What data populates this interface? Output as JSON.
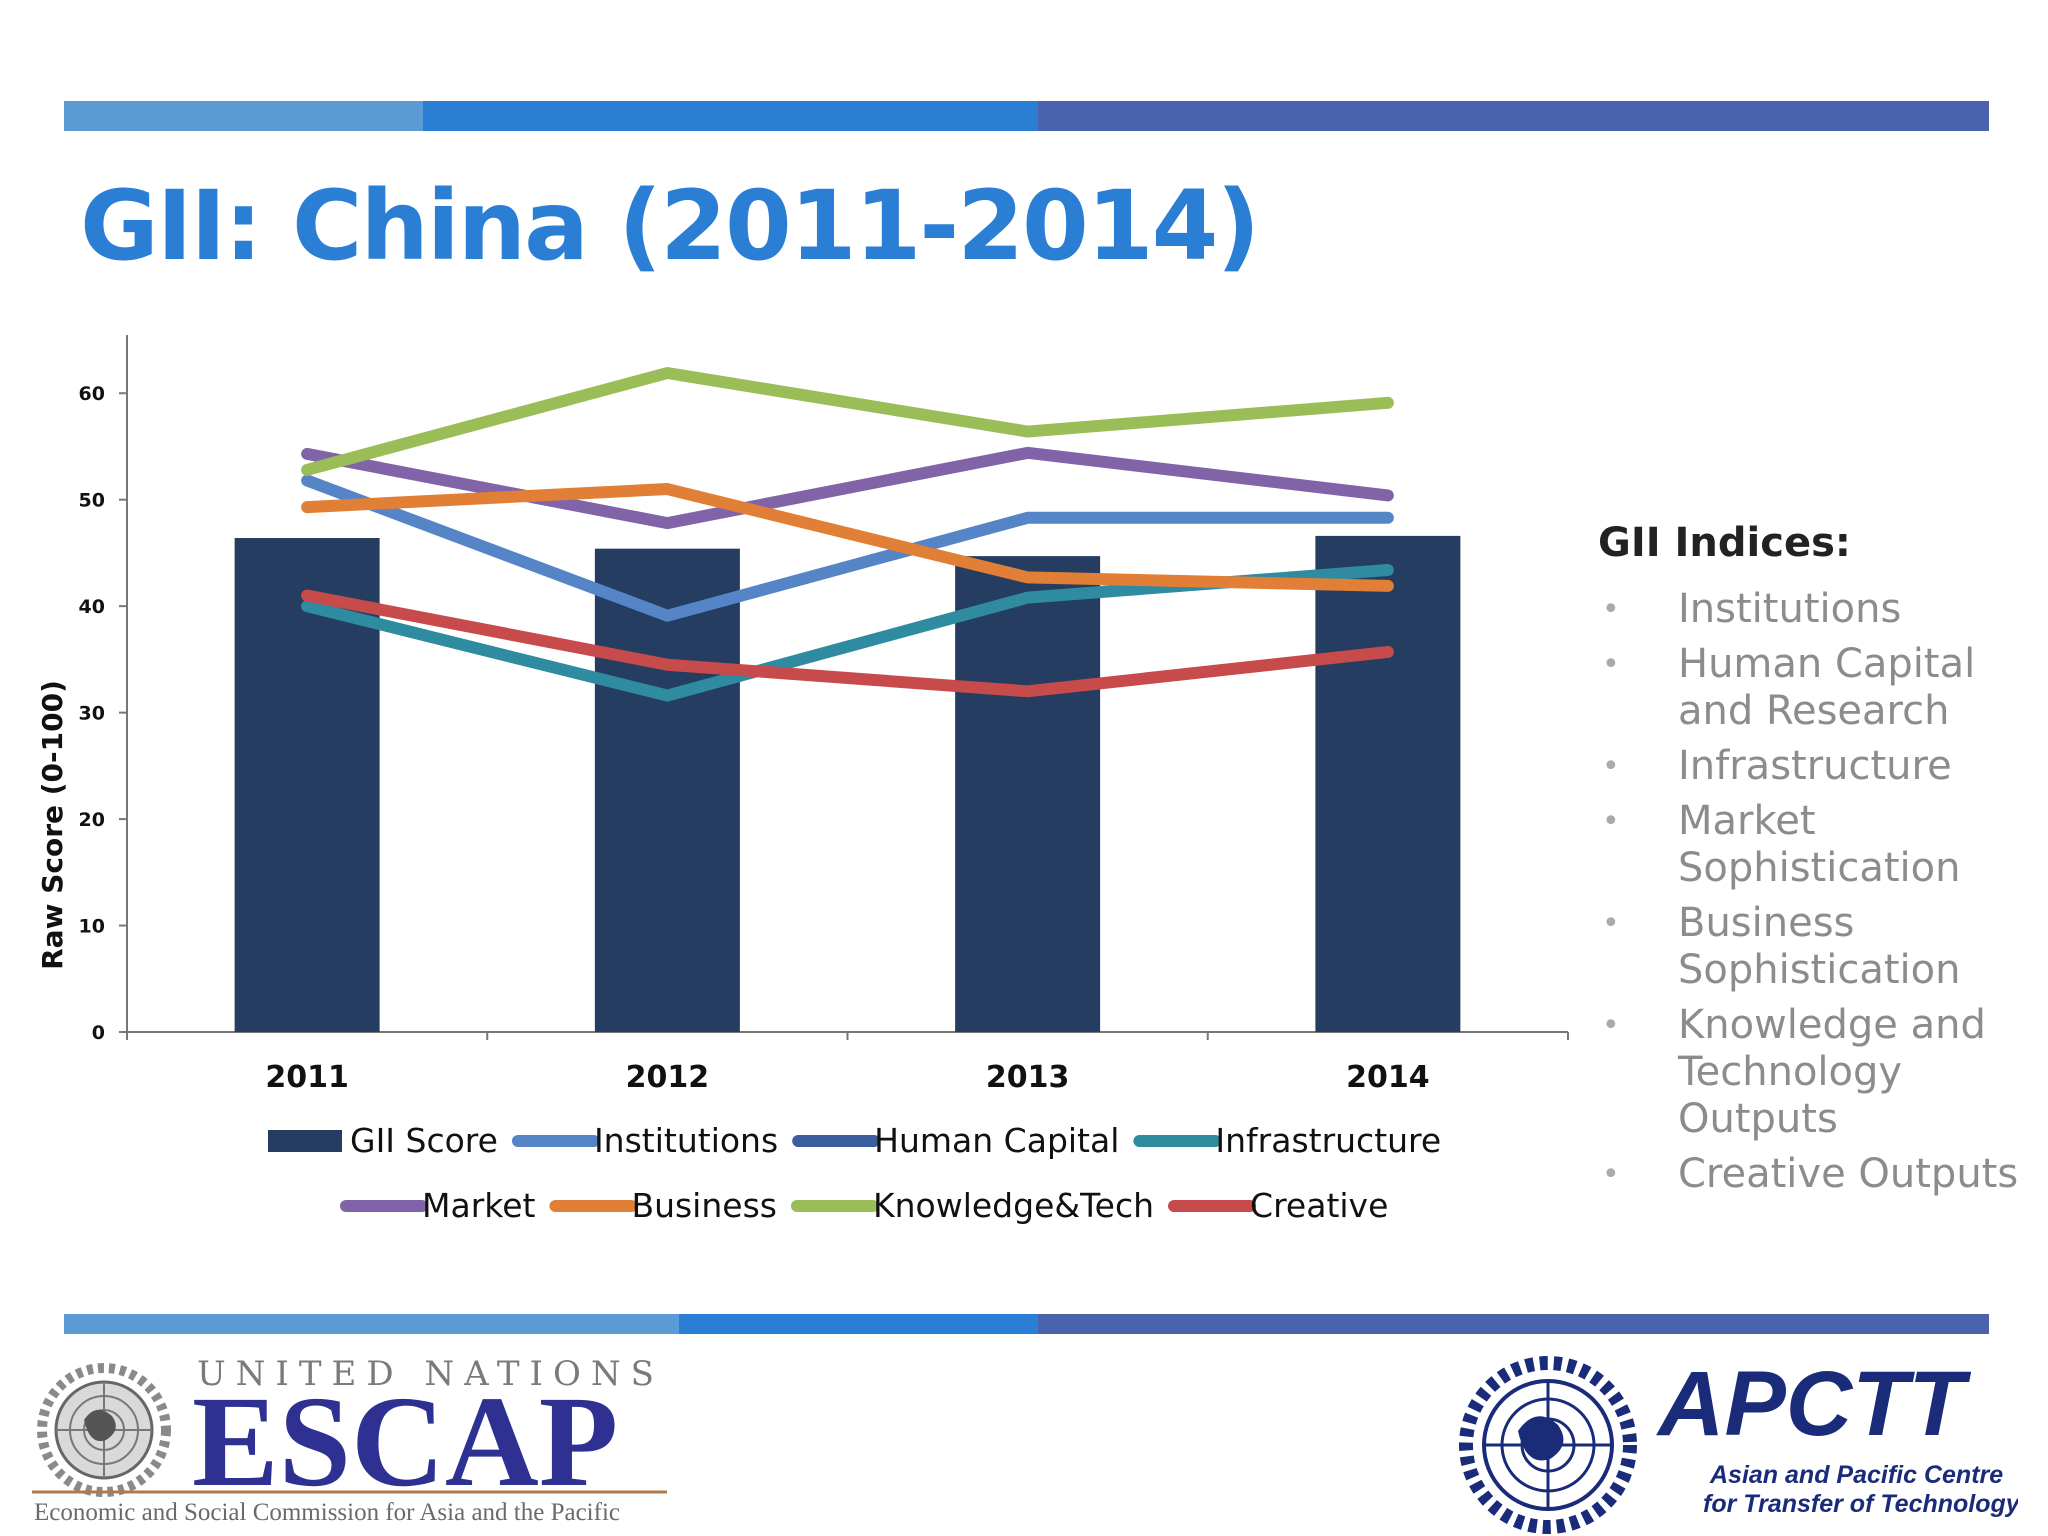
{
  "title": "GII: China (2011-2014)",
  "chart_data": {
    "type": "bar",
    "categories": [
      "2011",
      "2012",
      "2013",
      "2014"
    ],
    "ylabel": "Raw Score (0-100)",
    "xlabel": "",
    "ylim": [
      0,
      65
    ],
    "yticks": [
      0,
      10,
      20,
      30,
      40,
      50,
      60
    ],
    "grid": false,
    "legend_position": "bottom",
    "bar_series": {
      "name": "GII Score",
      "color": "#253d60",
      "values": [
        46.4,
        45.4,
        44.7,
        46.6
      ]
    },
    "line_series": [
      {
        "name": "Institutions",
        "color": "#5585c6",
        "values": [
          51.8,
          39.1,
          48.3,
          48.3
        ]
      },
      {
        "name": "Human Capital",
        "color": "#3c5e9c",
        "values": [
          null,
          null,
          null,
          null
        ]
      },
      {
        "name": "Infrastructure",
        "color": "#2e8ba0",
        "values": [
          40.0,
          31.6,
          40.8,
          43.4
        ]
      },
      {
        "name": "Market",
        "color": "#8164a8",
        "values": [
          54.3,
          47.8,
          54.4,
          50.4
        ]
      },
      {
        "name": "Business",
        "color": "#e07f35",
        "values": [
          49.3,
          51.0,
          42.7,
          41.9
        ]
      },
      {
        "name": "Knowledge&Tech",
        "color": "#9bbd58",
        "values": [
          52.8,
          61.9,
          56.4,
          59.1
        ]
      },
      {
        "name": "Creative",
        "color": "#c74b4b",
        "values": [
          41.0,
          34.5,
          32.0,
          35.7
        ]
      }
    ]
  },
  "indices": {
    "title": "GII Indices:",
    "items": [
      "Institutions",
      "Human Capital and Research",
      "Infrastructure",
      "Market Sophistication",
      "Business Sophistication",
      "Knowledge and Technology Outputs",
      "Creative Outputs"
    ]
  },
  "logos": {
    "escap": {
      "top": "UNITED NATIONS",
      "main": "ESCAP",
      "sub": "Economic and Social Commission for Asia and the Pacific"
    },
    "apctt": {
      "main": "APCTT",
      "line1": "Asian and Pacific Centre",
      "line2": "for Transfer of Technology"
    }
  },
  "colors": {
    "accent": "#2a7fd4",
    "bar_light": "#5b9bd5",
    "bar_dark": "#4a63ad"
  }
}
